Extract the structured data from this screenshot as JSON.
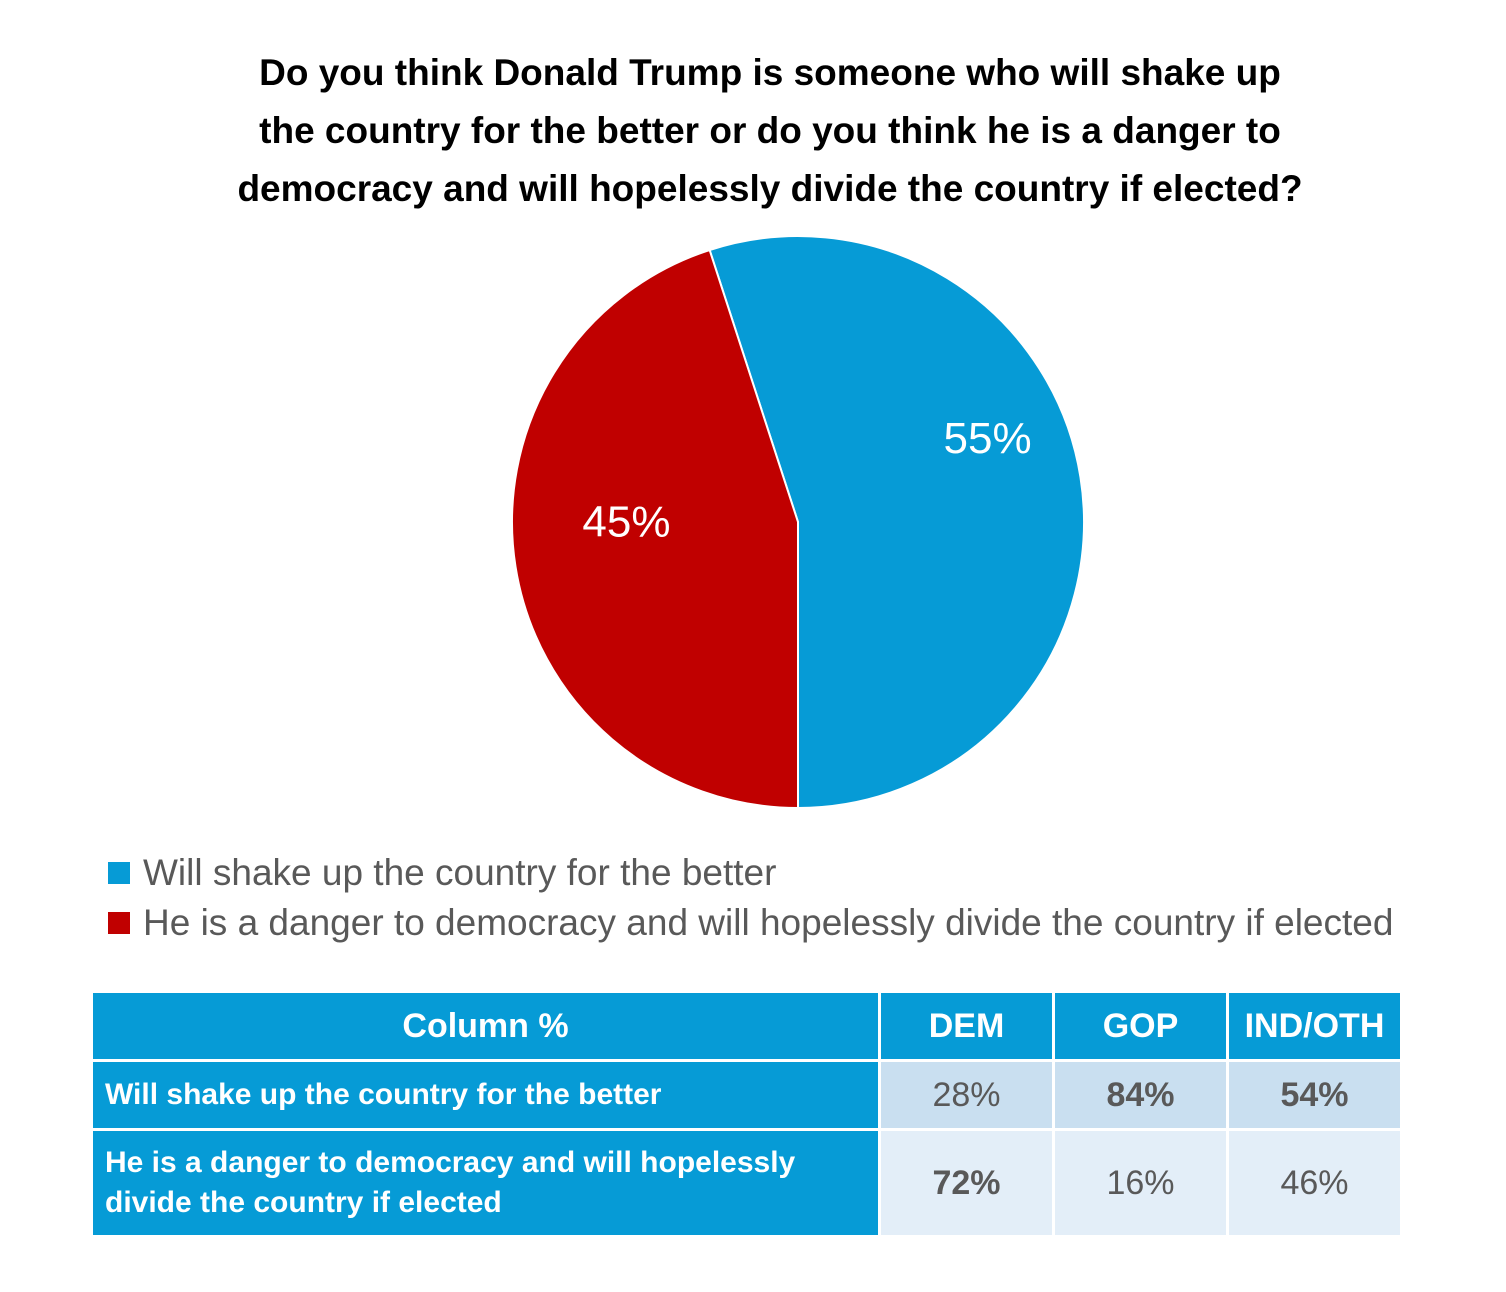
{
  "chart_data": {
    "type": "pie",
    "title_lines": [
      "Do you think Donald Trump is someone who will shake up",
      "the country for the better or do you think he is a danger to",
      "democracy and will hopelessly divide the country if elected?"
    ],
    "slices": [
      {
        "label": "Will shake up the country for the better",
        "value": 55,
        "display": "55%",
        "color": "#069bd6"
      },
      {
        "label": "He is a danger to democracy and will hopelessly divide the country if elected",
        "value": 45,
        "display": "45%",
        "color": "#c00000"
      }
    ],
    "legend_placement": "bottom-left"
  },
  "table": {
    "header": {
      "label": "Column %",
      "columns": [
        "DEM",
        "GOP",
        "IND/OTH"
      ]
    },
    "rows": [
      {
        "label": "Will shake up the country for the better",
        "cells": [
          {
            "text": "28%",
            "bold": false
          },
          {
            "text": "84%",
            "bold": true
          },
          {
            "text": "54%",
            "bold": true
          }
        ]
      },
      {
        "label_lines": [
          "He is a danger to democracy and will hopelessly",
          "divide the country if elected"
        ],
        "cells": [
          {
            "text": "72%",
            "bold": true
          },
          {
            "text": "16%",
            "bold": false
          },
          {
            "text": "46%",
            "bold": false
          }
        ]
      }
    ]
  },
  "colors": {
    "blue": "#069bd6",
    "red": "#c00000",
    "row1_fill": "#c9dff0",
    "row2_fill": "#e3eef8"
  }
}
